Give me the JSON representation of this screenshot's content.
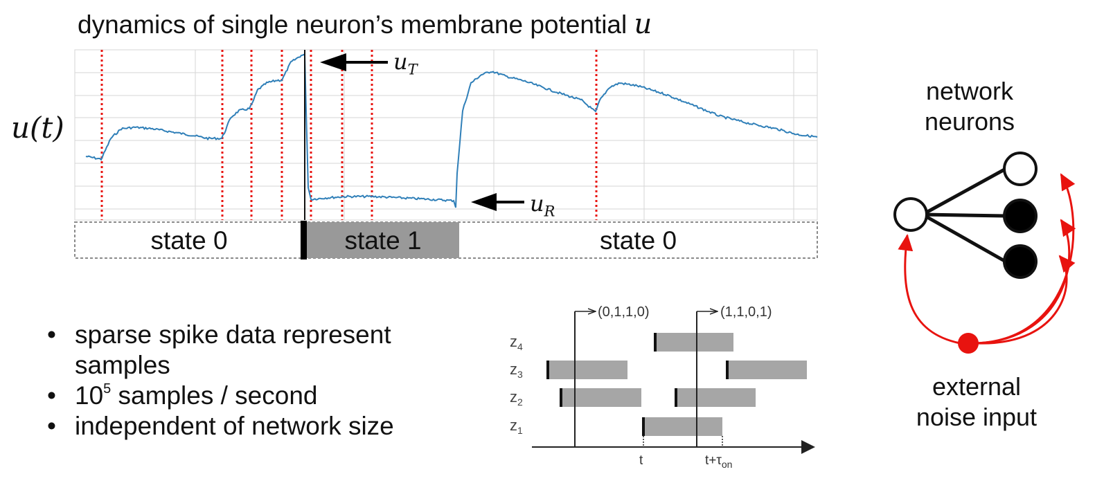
{
  "title": {
    "text": "dynamics of single neuron’s membrane potential",
    "variable": "u"
  },
  "y_axis_label": "u(t)",
  "annotations": {
    "threshold": {
      "symbol": "u",
      "subscript": "T"
    },
    "reset": {
      "symbol": "u",
      "subscript": "R"
    }
  },
  "states": [
    {
      "label": "state 0",
      "active": false
    },
    {
      "label": "state 1",
      "active": true
    },
    {
      "label": "state 0",
      "active": false
    }
  ],
  "bullets": [
    {
      "text": "sparse spike data represent samples"
    },
    {
      "base": "10",
      "exponent": "5",
      "rest": " samples / second"
    },
    {
      "text": "independent of network size"
    }
  ],
  "raster": {
    "rows": [
      "z4",
      "z3",
      "z2",
      "z1"
    ],
    "row_subscripts": [
      "4",
      "3",
      "2",
      "1"
    ],
    "sample_labels": [
      "(0,1,1,0)",
      "(1,1,0,1)"
    ],
    "t_label": "t",
    "t_tau_label": "t+τ",
    "tau_subscript": "on"
  },
  "network": {
    "title_lines": [
      "network",
      "neurons"
    ],
    "noise_lines": [
      "external",
      "noise input"
    ],
    "colors": {
      "noise": "#e8130f",
      "edge": "#111111"
    }
  },
  "colors": {
    "trace": "#2f7fb8",
    "spike_line": "#e8130f",
    "state_active": "#999999",
    "grid": "#d6d6d6"
  }
}
